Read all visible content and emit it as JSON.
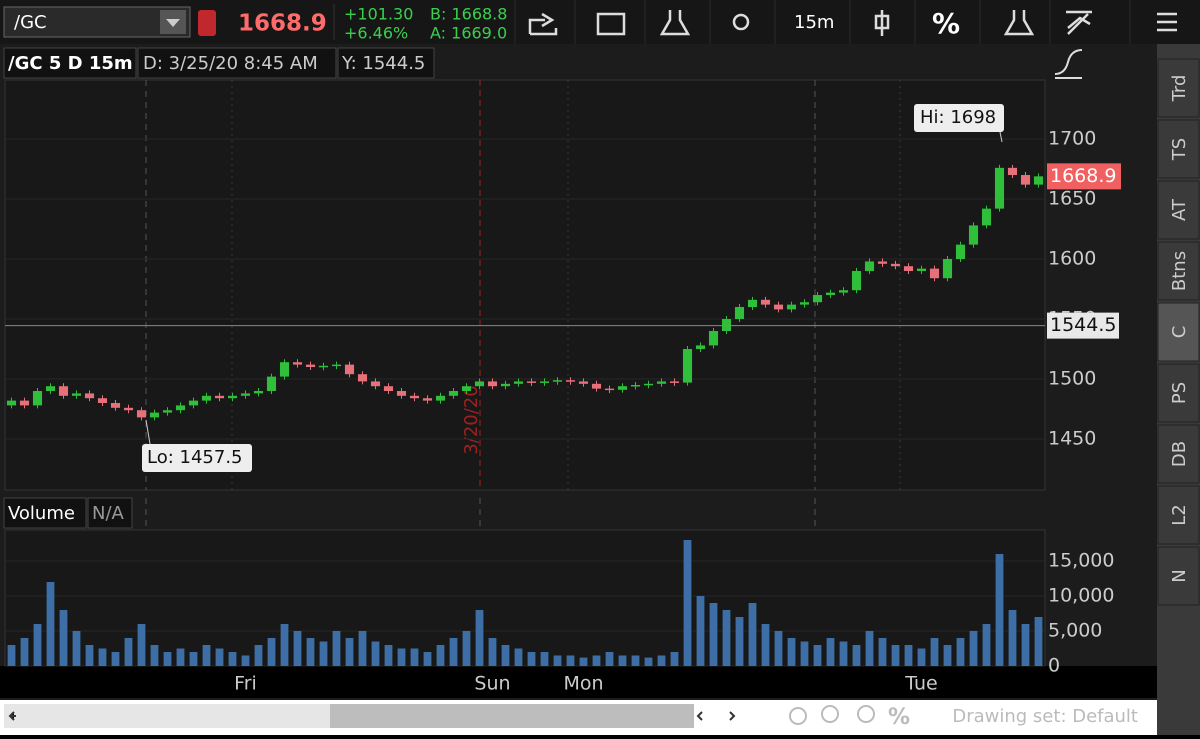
{
  "toolbar": {
    "symbol": "/GC",
    "last": "1668.9",
    "change": "+101.30",
    "change_pct": "+6.46%",
    "bid": "B: 1668.8",
    "ask": "A: 1669.0",
    "interval": "15m",
    "percent": "%"
  },
  "chart_header": {
    "title": "/GC 5 D 15m",
    "date": "D: 3/25/20 8:45 AM",
    "cursor": "Y: 1544.5"
  },
  "volume_header": {
    "title": "Volume",
    "value": "N/A"
  },
  "side_tabs": [
    "Trd",
    "TS",
    "AT",
    "Btns",
    "C",
    "PS",
    "DB",
    "L2",
    "N"
  ],
  "footer": {
    "drawing_set": "Drawing set: Default"
  },
  "chart_data": [
    {
      "type": "candlestick",
      "up_color": "#2fbf3a",
      "down_color": "#e8707a",
      "categories": [
        null,
        null,
        null,
        null,
        null,
        null,
        null,
        null,
        null,
        null,
        null,
        null,
        null,
        null,
        null,
        null,
        null,
        null,
        "Fri",
        null,
        null,
        null,
        null,
        null,
        null,
        null,
        null,
        null,
        null,
        null,
        null,
        null,
        null,
        null,
        null,
        null,
        null,
        "Sun",
        null,
        null,
        null,
        null,
        null,
        null,
        "Mon",
        null,
        null,
        null,
        null,
        null,
        null,
        null,
        null,
        null,
        null,
        null,
        null,
        null,
        null,
        null,
        null,
        null,
        null,
        null,
        null,
        null,
        null,
        null,
        null,
        null,
        "Tue",
        null,
        null,
        null,
        null,
        null,
        null,
        null,
        null,
        null
      ],
      "open": [
        1478,
        1482,
        1478,
        1490,
        1494,
        1486,
        1488,
        1484,
        1480,
        1476,
        1474,
        1468,
        1472,
        1474,
        1478,
        1482,
        1486,
        1484,
        1486,
        1488,
        1490,
        1502,
        1514,
        1512,
        1510,
        1511,
        1512,
        1504,
        1498,
        1494,
        1490,
        1486,
        1484,
        1482,
        1486,
        1490,
        1494,
        1498,
        1494,
        1496,
        1498,
        1497,
        1498,
        1499,
        1498,
        1496,
        1492,
        1491,
        1494,
        1495,
        1496,
        1498,
        1497,
        1525,
        1528,
        1540,
        1550,
        1560,
        1566,
        1562,
        1558,
        1562,
        1564,
        1570,
        1572,
        1574,
        1590,
        1598,
        1596,
        1594,
        1590,
        1592,
        1584,
        1600,
        1612,
        1628,
        1642,
        1676,
        1670,
        1662
      ],
      "close": [
        1482,
        1478,
        1490,
        1494,
        1486,
        1488,
        1484,
        1480,
        1476,
        1474,
        1468,
        1472,
        1474,
        1478,
        1482,
        1486,
        1484,
        1486,
        1488,
        1490,
        1502,
        1514,
        1512,
        1510,
        1511,
        1512,
        1504,
        1498,
        1494,
        1490,
        1486,
        1484,
        1482,
        1486,
        1490,
        1494,
        1498,
        1494,
        1496,
        1498,
        1497,
        1498,
        1499,
        1498,
        1496,
        1492,
        1491,
        1494,
        1495,
        1496,
        1498,
        1497,
        1525,
        1528,
        1540,
        1550,
        1560,
        1566,
        1562,
        1558,
        1562,
        1564,
        1570,
        1572,
        1574,
        1590,
        1598,
        1596,
        1594,
        1590,
        1592,
        1584,
        1600,
        1612,
        1628,
        1642,
        1676,
        1670,
        1662,
        1668.9
      ],
      "ylim": [
        1407.5,
        1749.2
      ],
      "yticks": [
        1450,
        1500,
        1550,
        1600,
        1650,
        1700
      ],
      "cursor_value": 1544.5,
      "hi_label": "Hi: 1698",
      "lo_label": "Lo: 1457.5",
      "date_marker": "3/20/20"
    },
    {
      "type": "bar",
      "color": "#3d6fa6",
      "values": [
        3000,
        4000,
        6000,
        12000,
        8000,
        5000,
        3000,
        2500,
        2000,
        4000,
        6000,
        3000,
        2000,
        2500,
        2000,
        3000,
        2500,
        2000,
        1500,
        3000,
        4000,
        6000,
        5000,
        4000,
        3500,
        5000,
        4000,
        5000,
        3500,
        3000,
        2500,
        2500,
        2000,
        3000,
        4000,
        5000,
        8000,
        4000,
        3000,
        2500,
        2000,
        2000,
        1500,
        1500,
        1200,
        1500,
        2000,
        1500,
        1500,
        1200,
        1500,
        2000,
        18000,
        10000,
        9000,
        8000,
        7000,
        9000,
        6000,
        5000,
        4000,
        3500,
        3000,
        4000,
        3500,
        3000,
        5000,
        4000,
        3000,
        3000,
        2500,
        4000,
        3000,
        4000,
        5000,
        6000,
        16000,
        8000,
        6000,
        7000
      ],
      "ylim": [
        0,
        24000
      ],
      "yticks": [
        0,
        {
          "value": 5000,
          "label": "5,000"
        },
        {
          "value": 10000,
          "label": "10,000"
        },
        {
          "value": 15000,
          "label": "15,000"
        }
      ]
    }
  ]
}
